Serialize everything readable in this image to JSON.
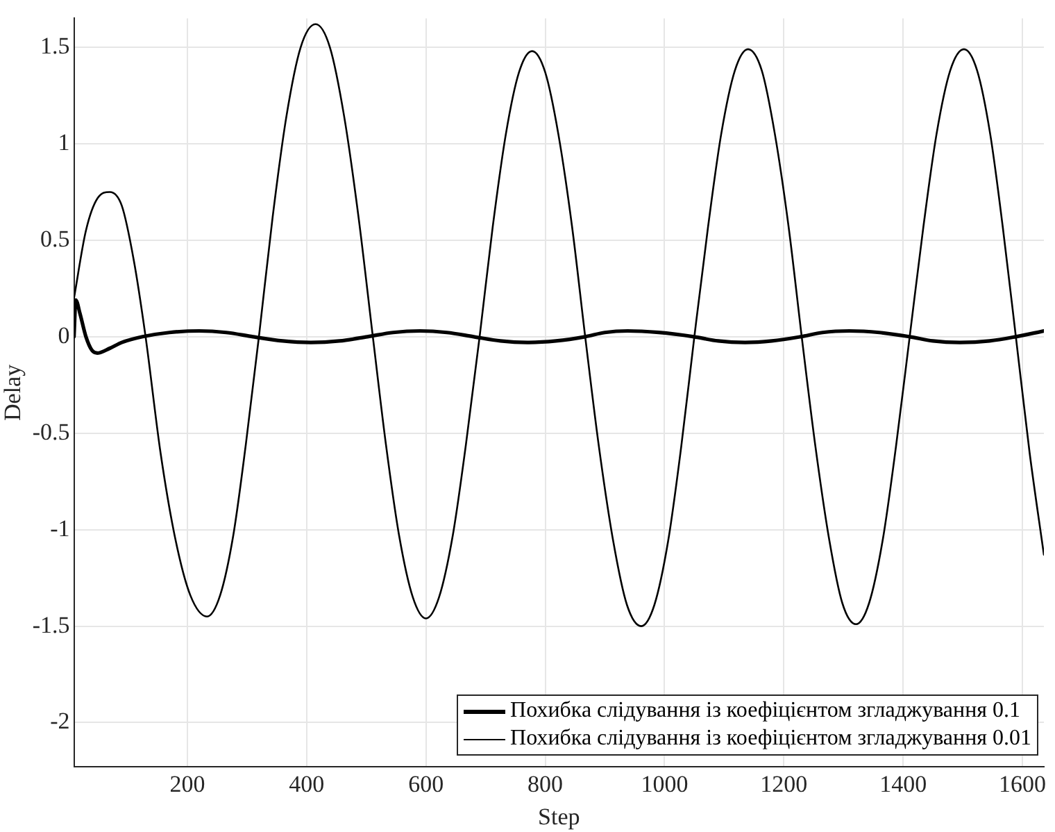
{
  "chart_data": {
    "type": "line",
    "xlabel": "Step",
    "ylabel": "Delay",
    "xlim": [
      10,
      1636
    ],
    "ylim": [
      -2.23,
      1.65
    ],
    "xticks": [
      200,
      400,
      600,
      800,
      1000,
      1200,
      1400,
      1600
    ],
    "yticks": [
      -2,
      -1.5,
      -1,
      -0.5,
      0,
      0.5,
      1,
      1.5
    ],
    "grid": true,
    "legend": "bottom right",
    "line_style": "solid",
    "marker": "none",
    "series": [
      {
        "name": "Похибка слідування із коефіцієнтом згладжування 0.1",
        "color": "#000000",
        "x": [
          10,
          13,
          20,
          30,
          40,
          49,
          70,
          90,
          125,
          170,
          220,
          265,
          310,
          360,
          407,
          455,
          502,
          545,
          590,
          635,
          680,
          725,
          770,
          818,
          867,
          900,
          938,
          990,
          1049,
          1090,
          1135,
          1180,
          1228,
          1265,
          1310,
          1360,
          1411,
          1450,
          1495,
          1545,
          1589,
          1636
        ],
        "values": [
          0,
          0.19,
          0.12,
          0,
          -0.07,
          -0.085,
          -0.06,
          -0.03,
          0,
          0.022,
          0.03,
          0.022,
          0,
          -0.022,
          -0.03,
          -0.022,
          0,
          0.022,
          0.03,
          0.022,
          0,
          -0.022,
          -0.03,
          -0.022,
          0,
          0.022,
          0.03,
          0.022,
          0,
          -0.022,
          -0.03,
          -0.022,
          0,
          0.022,
          0.03,
          0.022,
          0,
          -0.022,
          -0.03,
          -0.022,
          0,
          0.03
        ]
      },
      {
        "name": "Похибка слідування із коефіцієнтом згладжування 0.01",
        "color": "#000000",
        "x": [
          10,
          30,
          50,
          70,
          90,
          110,
          130,
          155,
          180,
          205,
          233,
          255,
          277,
          298,
          320,
          343,
          366,
          390,
          415,
          439,
          463,
          487,
          511,
          533,
          555,
          578,
          600,
          622,
          645,
          667,
          690,
          712,
          734,
          756,
          778,
          800,
          822,
          845,
          867,
          890,
          914,
          937,
          961,
          983,
          1006,
          1028,
          1050,
          1073,
          1095,
          1118,
          1140,
          1163,
          1185,
          1208,
          1230,
          1253,
          1276,
          1298,
          1321,
          1343,
          1366,
          1388,
          1411,
          1434,
          1456,
          1479,
          1502,
          1524,
          1546,
          1567,
          1589,
          1612,
          1636
        ],
        "values": [
          0.2,
          0.55,
          0.72,
          0.75,
          0.68,
          0.4,
          0,
          -0.6,
          -1.05,
          -1.34,
          -1.45,
          -1.34,
          -1.03,
          -0.56,
          0,
          0.62,
          1.14,
          1.5,
          1.62,
          1.5,
          1.14,
          0.62,
          0,
          -0.56,
          -1.03,
          -1.35,
          -1.46,
          -1.35,
          -1.03,
          -0.56,
          0,
          0.57,
          1.05,
          1.37,
          1.48,
          1.37,
          1.05,
          0.57,
          0,
          -0.57,
          -1.06,
          -1.39,
          -1.5,
          -1.39,
          -1.06,
          -0.57,
          0,
          0.57,
          1.05,
          1.38,
          1.49,
          1.38,
          1.05,
          0.57,
          0,
          -0.57,
          -1.05,
          -1.38,
          -1.49,
          -1.38,
          -1.05,
          -0.57,
          0,
          0.57,
          1.05,
          1.38,
          1.49,
          1.38,
          1.05,
          0.57,
          0,
          -0.6,
          -1.13
        ]
      }
    ]
  }
}
